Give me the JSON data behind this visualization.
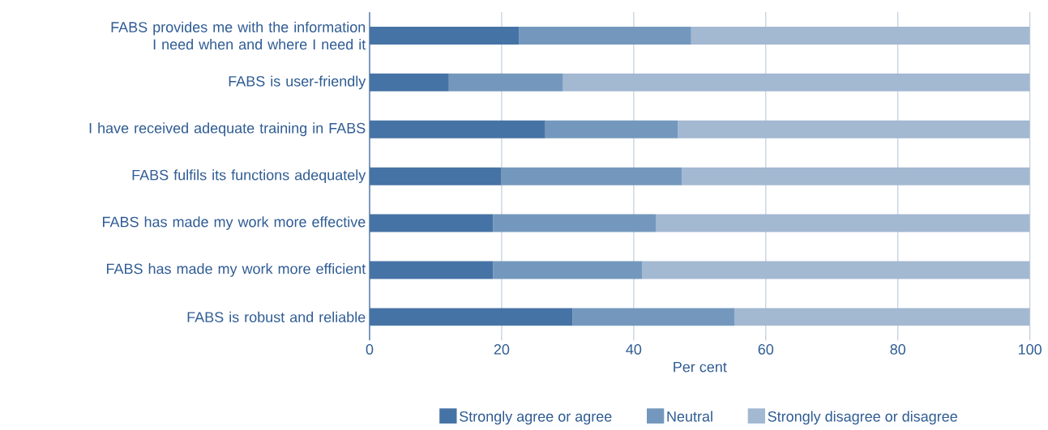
{
  "chart_data": {
    "type": "bar",
    "orientation": "horizontal",
    "stacked": true,
    "categories": [
      "FABS provides me with the information I need when and where I need it",
      "FABS is user-friendly",
      "I have received adequate training in FABS",
      "FABS fulfils its functions adequately",
      "FABS has made my work more effective",
      "FABS has made my work more efficient",
      "FABS is robust and reliable"
    ],
    "series": [
      {
        "name": "Strongly agree or agree",
        "color": "#4673a5",
        "values": [
          22.6,
          12.0,
          26.6,
          19.9,
          18.7,
          18.7,
          30.7
        ]
      },
      {
        "name": "Neutral",
        "color": "#7498bd",
        "values": [
          26.1,
          17.3,
          20.1,
          27.4,
          24.7,
          22.6,
          24.6
        ]
      },
      {
        "name": "Strongly disagree or disagree",
        "color": "#a3b8d1",
        "values": [
          51.3,
          70.7,
          53.3,
          52.7,
          56.6,
          58.7,
          44.7
        ]
      }
    ],
    "xlim": [
      0,
      100
    ],
    "xticks": [
      0,
      20,
      40,
      60,
      80,
      100
    ],
    "xlabel": "Per cent",
    "grid": "x",
    "legend": "bottom"
  }
}
